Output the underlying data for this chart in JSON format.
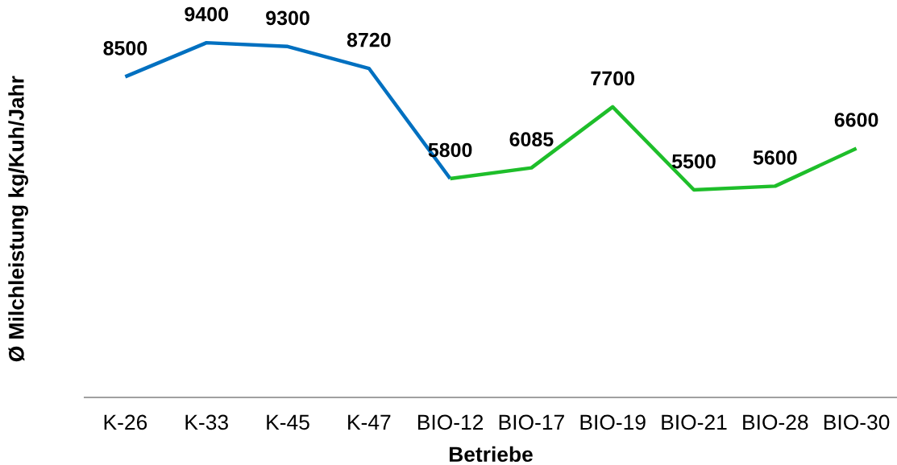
{
  "chart_data": {
    "type": "line",
    "xlabel": "Betriebe",
    "ylabel": "Ø Milchleistung kg/Kuh/Jahr",
    "categories": [
      "K-26",
      "K-33",
      "K-45",
      "K-47",
      "BIO-12",
      "BIO-17",
      "BIO-19",
      "BIO-21",
      "BIO-28",
      "BIO-30"
    ],
    "series": [
      {
        "color": "#0070c0",
        "values": [
          8500,
          9400,
          9300,
          8720,
          5800,
          null,
          null,
          null,
          null,
          null
        ],
        "value_labels": [
          "8500",
          "9400",
          "9300",
          "8720",
          null,
          null,
          null,
          null,
          null,
          null
        ]
      },
      {
        "color": "#1ebe2a",
        "values": [
          null,
          null,
          null,
          null,
          5800,
          6085,
          7700,
          5500,
          5600,
          6600
        ],
        "value_labels": [
          null,
          null,
          null,
          null,
          "5800",
          "6085",
          "7700",
          "5500",
          "5600",
          "6600"
        ]
      }
    ],
    "tick_labels": "x",
    "grid": false,
    "legend": false,
    "marker": "none",
    "line_style": "solid"
  }
}
